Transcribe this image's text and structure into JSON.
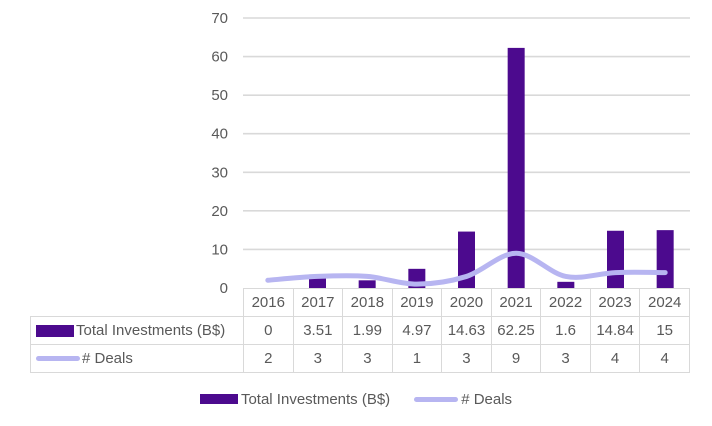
{
  "chart_data": {
    "type": "bar",
    "subtype": "combo-bar-line",
    "title": "",
    "categories": [
      "2016",
      "2017",
      "2018",
      "2019",
      "2020",
      "2021",
      "2022",
      "2023",
      "2024"
    ],
    "series": [
      {
        "name": "Total Investments (B$)",
        "type": "bar",
        "values": [
          0,
          3.51,
          1.99,
          4.97,
          14.63,
          62.25,
          1.6,
          14.84,
          15
        ]
      },
      {
        "name": "# Deals",
        "type": "line",
        "values": [
          2,
          3,
          3,
          1,
          3,
          9,
          3,
          4,
          4
        ],
        "smooth": true
      }
    ],
    "xlabel": "",
    "ylabel": "",
    "ylim": [
      0,
      70
    ],
    "y_step": 10,
    "y_tick_labels": [
      "0",
      "10",
      "20",
      "30",
      "40",
      "50",
      "60",
      "70"
    ],
    "grid": true,
    "legend_position": "bottom",
    "data_table_shown": true
  },
  "table": {
    "header_years": [
      "2016",
      "2017",
      "2018",
      "2019",
      "2020",
      "2021",
      "2022",
      "2023",
      "2024"
    ],
    "rows": [
      {
        "label": "Total Investments (B$)",
        "swatch": "bar",
        "cells": [
          "0",
          "3.51",
          "1.99",
          "4.97",
          "14.63",
          "62.25",
          "1.6",
          "14.84",
          "15"
        ]
      },
      {
        "label": "# Deals",
        "swatch": "line",
        "cells": [
          "2",
          "3",
          "3",
          "1",
          "3",
          "9",
          "3",
          "4",
          "4"
        ]
      }
    ]
  },
  "legend": {
    "items": [
      {
        "label": "Total Investments (B$)",
        "swatch": "bar"
      },
      {
        "label": "# Deals",
        "swatch": "line"
      }
    ]
  },
  "colors": {
    "bar": "#4c0a8e",
    "line": "#b7b5f1",
    "gridline": "#d9d9d9",
    "table_border": "#d9d9d9",
    "text_gray": "#595959",
    "background": "#ffffff"
  }
}
